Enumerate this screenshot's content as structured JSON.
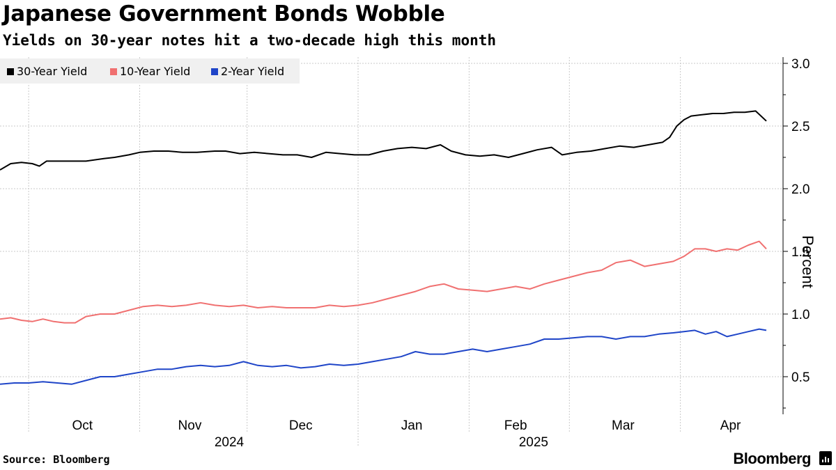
{
  "header": {
    "title": "Japanese Government Bonds Wobble",
    "subtitle": "Yields on 30-year notes hit a two-decade high this month"
  },
  "footer": {
    "source": "Source: Bloomberg",
    "brand": "Bloomberg"
  },
  "chart_data": {
    "type": "line",
    "ylabel": "Percent",
    "ylim": [
      0.2,
      3.05
    ],
    "yticks": [
      0.5,
      1.0,
      1.5,
      2.0,
      2.5,
      3.0
    ],
    "ytick_labels": [
      "0.5",
      "1.0",
      "1.5",
      "2.0",
      "2.5",
      "3.0"
    ],
    "y_axis_position": "right",
    "grid": true,
    "legend_position": "top-left",
    "xlim": [
      "2024-09-23",
      "2025-04-25"
    ],
    "month_labels": [
      {
        "label": "Oct",
        "date": "2024-10-16"
      },
      {
        "label": "Nov",
        "date": "2024-11-15"
      },
      {
        "label": "Dec",
        "date": "2024-12-16"
      },
      {
        "label": "Jan",
        "date": "2025-01-16"
      },
      {
        "label": "Feb",
        "date": "2025-02-14"
      },
      {
        "label": "Mar",
        "date": "2025-03-16"
      },
      {
        "label": "Apr",
        "date": "2025-04-15"
      }
    ],
    "month_starts": [
      "2024-10-01",
      "2024-11-01",
      "2024-12-01",
      "2025-01-01",
      "2025-02-01",
      "2025-03-01",
      "2025-04-01"
    ],
    "year_labels": [
      {
        "label": "2024",
        "date": "2024-11-26"
      },
      {
        "label": "2025",
        "date": "2025-02-19"
      }
    ],
    "year_boundary": "2025-01-01",
    "series": [
      {
        "name": "30-Year Yield",
        "color": "#000000",
        "points": [
          [
            "2024-09-23",
            2.15
          ],
          [
            "2024-09-26",
            2.2
          ],
          [
            "2024-09-29",
            2.21
          ],
          [
            "2024-10-02",
            2.2
          ],
          [
            "2024-10-04",
            2.18
          ],
          [
            "2024-10-06",
            2.22
          ],
          [
            "2024-10-09",
            2.22
          ],
          [
            "2024-10-13",
            2.22
          ],
          [
            "2024-10-17",
            2.22
          ],
          [
            "2024-10-22",
            2.24
          ],
          [
            "2024-10-25",
            2.25
          ],
          [
            "2024-10-29",
            2.27
          ],
          [
            "2024-11-01",
            2.29
          ],
          [
            "2024-11-05",
            2.3
          ],
          [
            "2024-11-09",
            2.3
          ],
          [
            "2024-11-13",
            2.29
          ],
          [
            "2024-11-17",
            2.29
          ],
          [
            "2024-11-22",
            2.3
          ],
          [
            "2024-11-25",
            2.3
          ],
          [
            "2024-11-29",
            2.28
          ],
          [
            "2024-12-03",
            2.29
          ],
          [
            "2024-12-07",
            2.28
          ],
          [
            "2024-12-11",
            2.27
          ],
          [
            "2024-12-15",
            2.27
          ],
          [
            "2024-12-19",
            2.25
          ],
          [
            "2024-12-23",
            2.29
          ],
          [
            "2024-12-27",
            2.28
          ],
          [
            "2024-12-31",
            2.27
          ],
          [
            "2025-01-04",
            2.27
          ],
          [
            "2025-01-08",
            2.3
          ],
          [
            "2025-01-12",
            2.32
          ],
          [
            "2025-01-16",
            2.33
          ],
          [
            "2025-01-20",
            2.32
          ],
          [
            "2025-01-24",
            2.35
          ],
          [
            "2025-01-27",
            2.3
          ],
          [
            "2025-01-31",
            2.27
          ],
          [
            "2025-02-04",
            2.26
          ],
          [
            "2025-02-08",
            2.27
          ],
          [
            "2025-02-12",
            2.25
          ],
          [
            "2025-02-16",
            2.28
          ],
          [
            "2025-02-20",
            2.31
          ],
          [
            "2025-02-24",
            2.33
          ],
          [
            "2025-02-27",
            2.27
          ],
          [
            "2025-03-03",
            2.29
          ],
          [
            "2025-03-07",
            2.3
          ],
          [
            "2025-03-11",
            2.32
          ],
          [
            "2025-03-15",
            2.34
          ],
          [
            "2025-03-19",
            2.33
          ],
          [
            "2025-03-23",
            2.35
          ],
          [
            "2025-03-27",
            2.37
          ],
          [
            "2025-03-29",
            2.41
          ],
          [
            "2025-03-31",
            2.5
          ],
          [
            "2025-04-02",
            2.55
          ],
          [
            "2025-04-04",
            2.58
          ],
          [
            "2025-04-07",
            2.59
          ],
          [
            "2025-04-10",
            2.6
          ],
          [
            "2025-04-13",
            2.6
          ],
          [
            "2025-04-16",
            2.61
          ],
          [
            "2025-04-19",
            2.61
          ],
          [
            "2025-04-22",
            2.62
          ],
          [
            "2025-04-25",
            2.54
          ]
        ]
      },
      {
        "name": "10-Year Yield",
        "color": "#f07070",
        "points": [
          [
            "2024-09-23",
            0.96
          ],
          [
            "2024-09-26",
            0.97
          ],
          [
            "2024-09-29",
            0.95
          ],
          [
            "2024-10-02",
            0.94
          ],
          [
            "2024-10-05",
            0.96
          ],
          [
            "2024-10-08",
            0.94
          ],
          [
            "2024-10-11",
            0.93
          ],
          [
            "2024-10-14",
            0.93
          ],
          [
            "2024-10-17",
            0.98
          ],
          [
            "2024-10-21",
            1.0
          ],
          [
            "2024-10-25",
            1.0
          ],
          [
            "2024-10-29",
            1.03
          ],
          [
            "2024-11-02",
            1.06
          ],
          [
            "2024-11-06",
            1.07
          ],
          [
            "2024-11-10",
            1.06
          ],
          [
            "2024-11-14",
            1.07
          ],
          [
            "2024-11-18",
            1.09
          ],
          [
            "2024-11-22",
            1.07
          ],
          [
            "2024-11-26",
            1.06
          ],
          [
            "2024-11-30",
            1.07
          ],
          [
            "2024-12-04",
            1.05
          ],
          [
            "2024-12-08",
            1.06
          ],
          [
            "2024-12-12",
            1.05
          ],
          [
            "2024-12-16",
            1.05
          ],
          [
            "2024-12-20",
            1.05
          ],
          [
            "2024-12-24",
            1.07
          ],
          [
            "2024-12-28",
            1.06
          ],
          [
            "2025-01-01",
            1.07
          ],
          [
            "2025-01-05",
            1.09
          ],
          [
            "2025-01-09",
            1.12
          ],
          [
            "2025-01-13",
            1.15
          ],
          [
            "2025-01-17",
            1.18
          ],
          [
            "2025-01-21",
            1.22
          ],
          [
            "2025-01-25",
            1.24
          ],
          [
            "2025-01-29",
            1.2
          ],
          [
            "2025-02-02",
            1.19
          ],
          [
            "2025-02-06",
            1.18
          ],
          [
            "2025-02-10",
            1.2
          ],
          [
            "2025-02-14",
            1.22
          ],
          [
            "2025-02-18",
            1.2
          ],
          [
            "2025-02-22",
            1.24
          ],
          [
            "2025-02-26",
            1.27
          ],
          [
            "2025-03-02",
            1.3
          ],
          [
            "2025-03-06",
            1.33
          ],
          [
            "2025-03-10",
            1.35
          ],
          [
            "2025-03-14",
            1.41
          ],
          [
            "2025-03-18",
            1.43
          ],
          [
            "2025-03-22",
            1.38
          ],
          [
            "2025-03-26",
            1.4
          ],
          [
            "2025-03-30",
            1.42
          ],
          [
            "2025-04-02",
            1.46
          ],
          [
            "2025-04-05",
            1.52
          ],
          [
            "2025-04-08",
            1.52
          ],
          [
            "2025-04-11",
            1.5
          ],
          [
            "2025-04-14",
            1.52
          ],
          [
            "2025-04-17",
            1.51
          ],
          [
            "2025-04-20",
            1.55
          ],
          [
            "2025-04-23",
            1.58
          ],
          [
            "2025-04-25",
            1.52
          ]
        ]
      },
      {
        "name": "2-Year Yield",
        "color": "#1f45c8",
        "points": [
          [
            "2024-09-23",
            0.44
          ],
          [
            "2024-09-27",
            0.45
          ],
          [
            "2024-10-01",
            0.45
          ],
          [
            "2024-10-05",
            0.46
          ],
          [
            "2024-10-09",
            0.45
          ],
          [
            "2024-10-13",
            0.44
          ],
          [
            "2024-10-17",
            0.47
          ],
          [
            "2024-10-21",
            0.5
          ],
          [
            "2024-10-25",
            0.5
          ],
          [
            "2024-10-29",
            0.52
          ],
          [
            "2024-11-02",
            0.54
          ],
          [
            "2024-11-06",
            0.56
          ],
          [
            "2024-11-10",
            0.56
          ],
          [
            "2024-11-14",
            0.58
          ],
          [
            "2024-11-18",
            0.59
          ],
          [
            "2024-11-22",
            0.58
          ],
          [
            "2024-11-26",
            0.59
          ],
          [
            "2024-11-30",
            0.62
          ],
          [
            "2024-12-04",
            0.59
          ],
          [
            "2024-12-08",
            0.58
          ],
          [
            "2024-12-12",
            0.59
          ],
          [
            "2024-12-16",
            0.57
          ],
          [
            "2024-12-20",
            0.58
          ],
          [
            "2024-12-24",
            0.6
          ],
          [
            "2024-12-28",
            0.59
          ],
          [
            "2025-01-01",
            0.6
          ],
          [
            "2025-01-05",
            0.62
          ],
          [
            "2025-01-09",
            0.64
          ],
          [
            "2025-01-13",
            0.66
          ],
          [
            "2025-01-17",
            0.7
          ],
          [
            "2025-01-21",
            0.68
          ],
          [
            "2025-01-25",
            0.68
          ],
          [
            "2025-01-29",
            0.7
          ],
          [
            "2025-02-02",
            0.72
          ],
          [
            "2025-02-06",
            0.7
          ],
          [
            "2025-02-10",
            0.72
          ],
          [
            "2025-02-14",
            0.74
          ],
          [
            "2025-02-18",
            0.76
          ],
          [
            "2025-02-22",
            0.8
          ],
          [
            "2025-02-26",
            0.8
          ],
          [
            "2025-03-02",
            0.81
          ],
          [
            "2025-03-06",
            0.82
          ],
          [
            "2025-03-10",
            0.82
          ],
          [
            "2025-03-14",
            0.8
          ],
          [
            "2025-03-18",
            0.82
          ],
          [
            "2025-03-22",
            0.82
          ],
          [
            "2025-03-26",
            0.84
          ],
          [
            "2025-03-30",
            0.85
          ],
          [
            "2025-04-02",
            0.86
          ],
          [
            "2025-04-05",
            0.87
          ],
          [
            "2025-04-08",
            0.84
          ],
          [
            "2025-04-11",
            0.86
          ],
          [
            "2025-04-14",
            0.82
          ],
          [
            "2025-04-17",
            0.84
          ],
          [
            "2025-04-20",
            0.86
          ],
          [
            "2025-04-23",
            0.88
          ],
          [
            "2025-04-25",
            0.87
          ]
        ]
      }
    ]
  }
}
